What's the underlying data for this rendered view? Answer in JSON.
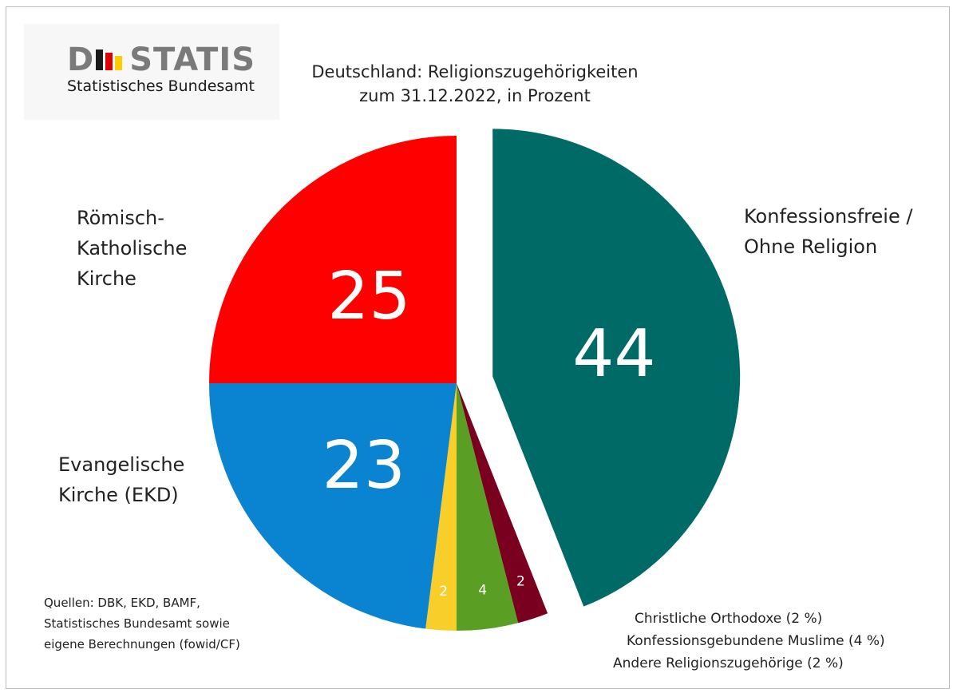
{
  "logo": {
    "wordmark": "DESTATIS",
    "subtitle": "Statistisches Bundesamt"
  },
  "title_line1": "Deutschland: Religionszugehörigkeiten",
  "title_line2": "zum 31.12.2022, in Prozent",
  "sources": [
    "Quellen: DBK, EKD, BAMF,",
    "Statistisches Bundesamt sowie",
    "eigene Berechnungen (fowid/CF)"
  ],
  "minor_legend": [
    "Christliche Orthodoxe (2 %)",
    "Konfessionsgebundene Muslime (4 %)",
    "Andere Religionszugehörige (2 %)"
  ],
  "chart_data": {
    "type": "pie",
    "title": "Deutschland: Religionszugehörigkeiten zum 31.12.2022, in Prozent",
    "unit": "Prozent",
    "slices": [
      {
        "label": "Konfessionsfreie / Ohne Religion",
        "value": 44,
        "display": "44",
        "color": "#006b66",
        "exploded": true
      },
      {
        "label": "Andere Religionszugehörige",
        "value": 2,
        "display": "2",
        "color": "#7a0020"
      },
      {
        "label": "Konfessionsgebundene Muslime",
        "value": 4,
        "display": "4",
        "color": "#5a9e24"
      },
      {
        "label": "Christliche Orthodoxe",
        "value": 2,
        "display": "2",
        "color": "#f7ce2a"
      },
      {
        "label": "Evangelische Kirche (EKD)",
        "value": 23,
        "display": "23",
        "color": "#0a84d0"
      },
      {
        "label": "Römisch-Katholische Kirche",
        "value": 25,
        "display": "25",
        "color": "#ff0000"
      }
    ],
    "outer_labels": [
      {
        "text": "Konfessionsfreie /\nOhne Religion"
      },
      {
        "text": "Römisch-\nKatholische\nKirche"
      },
      {
        "text": "Evangelische\nKirche (EKD)"
      }
    ],
    "logo_colors": [
      "#1a1a1a",
      "#dd0000",
      "#ffcc00"
    ]
  }
}
